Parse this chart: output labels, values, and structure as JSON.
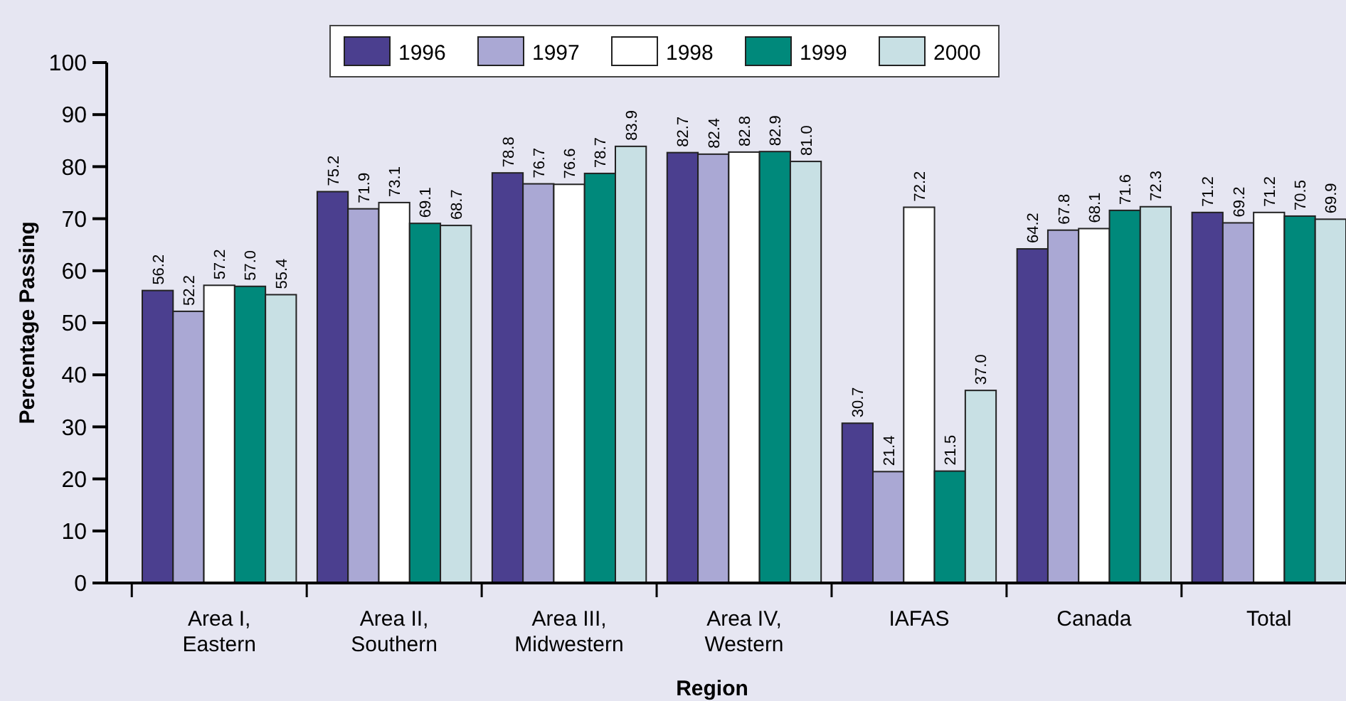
{
  "chart_data": {
    "type": "bar",
    "xlabel": "Region",
    "ylabel": "Percentage Passing",
    "categories": [
      "Area I, Eastern",
      "Area II, Southern",
      "Area III, Midwestern",
      "Area IV, Western",
      "IAFAS",
      "Canada",
      "Total"
    ],
    "series": [
      {
        "name": "1996",
        "color": "#4b3f8f",
        "values": [
          56.2,
          75.2,
          78.8,
          82.7,
          30.7,
          64.2,
          71.2
        ],
        "value_labels": [
          "56.2",
          "75.2",
          "78.8",
          "82.7",
          "30.7",
          "64.2",
          "71.2"
        ]
      },
      {
        "name": "1997",
        "color": "#aaa8d4",
        "values": [
          52.2,
          71.9,
          76.7,
          82.4,
          21.4,
          67.8,
          69.2
        ],
        "value_labels": [
          "52.2",
          "71.9",
          "76.7",
          "82.4",
          "21.4",
          "67.8",
          "69.2"
        ]
      },
      {
        "name": "1998",
        "color": "#ffffff",
        "values": [
          57.2,
          73.1,
          76.6,
          82.8,
          72.2,
          68.1,
          71.2
        ],
        "value_labels": [
          "57.2",
          "73.1",
          "76.6",
          "82.8",
          "72.2",
          "68.1",
          "71.2"
        ]
      },
      {
        "name": "1999",
        "color": "#00897b",
        "values": [
          57.0,
          69.1,
          78.7,
          82.9,
          21.5,
          71.6,
          70.5
        ],
        "value_labels": [
          "57.0",
          "69.1",
          "78.7",
          "82.9",
          "21.5",
          "71.6",
          "70.5"
        ]
      },
      {
        "name": "2000",
        "color": "#c8e0e4",
        "values": [
          55.4,
          68.7,
          83.9,
          81.0,
          37.0,
          72.3,
          69.9
        ],
        "value_labels": [
          "55.4",
          "68.7",
          "83.9",
          "81.0",
          "37.0",
          "72.3",
          "69.9"
        ]
      }
    ],
    "ylim": [
      0,
      100
    ],
    "yticks": [
      0,
      10,
      20,
      30,
      40,
      50,
      60,
      70,
      80,
      90,
      100
    ],
    "grid": false,
    "legend": "top"
  }
}
